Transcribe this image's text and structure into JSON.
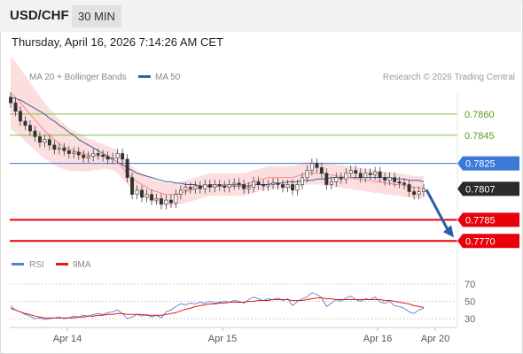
{
  "header": {
    "symbol": "USD/CHF",
    "timeframe": "30 MIN",
    "timestamp": "Thursday, April 16, 2026 7:14:26 AM CET"
  },
  "legend": {
    "ma20": "MA 20 + Bollinger Bands",
    "ma50": "MA 50",
    "copyright": "Research © 2026 Trading Central"
  },
  "rsi_legend": {
    "rsi": "RSI",
    "ma": "9MA"
  },
  "colors": {
    "resistance": "#7fbf3f",
    "pivot": "#3b78d8",
    "support": "#e8000b",
    "current": "#2a2a2a",
    "ma20": "#f08c8c",
    "ma50": "#3a5f9a",
    "bollinger_fill": "#fcdede",
    "rsi": "#5b7fd6",
    "rsi_ma": "#e01919"
  },
  "chart_data": [
    {
      "type": "candlestick",
      "y_range": [
        0.7762,
        0.7875
      ],
      "x_tick_labels": [
        "Apr 14",
        "Apr 15",
        "Apr 16",
        "Apr 20"
      ],
      "levels": [
        {
          "value": 0.786,
          "label": "0.7860",
          "kind": "resistance"
        },
        {
          "value": 0.7845,
          "label": "0.7845",
          "kind": "resistance"
        },
        {
          "value": 0.7825,
          "label": "0.7825",
          "kind": "pivot"
        },
        {
          "value": 0.7807,
          "label": "0.7807",
          "kind": "current"
        },
        {
          "value": 0.7785,
          "label": "0.7785",
          "kind": "support"
        },
        {
          "value": 0.777,
          "label": "0.7770",
          "kind": "support"
        }
      ],
      "close_series": [
        0.7868,
        0.7862,
        0.7855,
        0.7852,
        0.7848,
        0.7844,
        0.784,
        0.7842,
        0.7838,
        0.7835,
        0.7836,
        0.7834,
        0.7832,
        0.7833,
        0.7831,
        0.7829,
        0.783,
        0.7832,
        0.7831,
        0.783,
        0.7828,
        0.7829,
        0.7832,
        0.7828,
        0.7815,
        0.7803,
        0.7806,
        0.7801,
        0.7803,
        0.7799,
        0.78,
        0.7796,
        0.7799,
        0.7797,
        0.7803,
        0.7806,
        0.7808,
        0.7807,
        0.7809,
        0.7807,
        0.781,
        0.7808,
        0.781,
        0.7809,
        0.7808,
        0.781,
        0.7811,
        0.781,
        0.7807,
        0.7808,
        0.7812,
        0.781,
        0.7809,
        0.781,
        0.7811,
        0.781,
        0.7808,
        0.781,
        0.7806,
        0.781,
        0.7815,
        0.782,
        0.7825,
        0.7822,
        0.7818,
        0.781,
        0.7812,
        0.7815,
        0.7814,
        0.7818,
        0.782,
        0.7818,
        0.7815,
        0.7818,
        0.7817,
        0.7819,
        0.7815,
        0.7813,
        0.7815,
        0.7812,
        0.7811,
        0.781,
        0.7805,
        0.7803,
        0.7805,
        0.7807
      ],
      "ma20_series": [
        0.7875,
        0.7872,
        0.7868,
        0.7864,
        0.786,
        0.7856,
        0.7852,
        0.7848,
        0.7845,
        0.7842,
        0.7839,
        0.7837,
        0.7835,
        0.7834,
        0.7833,
        0.7832,
        0.7831,
        0.7831,
        0.783,
        0.783,
        0.7829,
        0.7828,
        0.7826,
        0.7822,
        0.7818,
        0.7815,
        0.7812,
        0.781,
        0.7808,
        0.7806,
        0.7805,
        0.7804,
        0.7803,
        0.7803,
        0.7803,
        0.7804,
        0.7805,
        0.7806,
        0.7807,
        0.7808,
        0.7809,
        0.781,
        0.781,
        0.781,
        0.781,
        0.781,
        0.781,
        0.781,
        0.781,
        0.7811,
        0.7812,
        0.7813,
        0.7814,
        0.7815,
        0.7815,
        0.7815,
        0.7815,
        0.7815,
        0.7815,
        0.7816,
        0.7817,
        0.7818,
        0.7818,
        0.7818,
        0.7818,
        0.7817,
        0.7817,
        0.7816,
        0.7816,
        0.7815,
        0.7815,
        0.7814,
        0.7814,
        0.7813,
        0.7813,
        0.7812,
        0.7812,
        0.7811,
        0.7811,
        0.781,
        0.781,
        0.7809,
        0.7809,
        0.7808,
        0.7808,
        0.7808
      ],
      "ma50_series": [
        0.7872,
        0.7871,
        0.787,
        0.7868,
        0.7866,
        0.7864,
        0.7862,
        0.786,
        0.7857,
        0.7855,
        0.7852,
        0.785,
        0.7847,
        0.7845,
        0.7842,
        0.784,
        0.7838,
        0.7836,
        0.7834,
        0.7832,
        0.783,
        0.7828,
        0.7826,
        0.7824,
        0.7822,
        0.782,
        0.7818,
        0.7817,
        0.7816,
        0.7815,
        0.7814,
        0.7813,
        0.7812,
        0.7812,
        0.7811,
        0.7811,
        0.781,
        0.781,
        0.781,
        0.7809,
        0.7809,
        0.7809,
        0.7809,
        0.7809,
        0.7809,
        0.7809,
        0.7809,
        0.7809,
        0.7809,
        0.7809,
        0.781,
        0.781,
        0.781,
        0.781,
        0.7811,
        0.7811,
        0.7811,
        0.7812,
        0.7812,
        0.7812,
        0.7813,
        0.7813,
        0.7813,
        0.7814,
        0.7814,
        0.7814,
        0.7815,
        0.7815,
        0.7815,
        0.7815,
        0.7815,
        0.7815,
        0.7815,
        0.7815,
        0.7815,
        0.7815,
        0.7815,
        0.7815,
        0.7815,
        0.7814,
        0.7814,
        0.7814,
        0.7813,
        0.7813,
        0.7813,
        0.7812
      ],
      "projection": {
        "from": 0.7807,
        "to": 0.7775
      }
    },
    {
      "type": "line",
      "name": "RSI",
      "y_range": [
        20,
        80
      ],
      "y_ticks": [
        "70",
        "50",
        "30"
      ],
      "reference_lines": [
        70,
        50,
        30
      ],
      "rsi_series": [
        45,
        40,
        38,
        35,
        33,
        30,
        31,
        29,
        30,
        31,
        32,
        30,
        31,
        33,
        32,
        34,
        33,
        35,
        36,
        35,
        37,
        38,
        40,
        36,
        30,
        32,
        35,
        33,
        35,
        32,
        34,
        31,
        38,
        40,
        44,
        47,
        46,
        48,
        47,
        49,
        48,
        50,
        48,
        49,
        50,
        49,
        51,
        50,
        48,
        52,
        55,
        53,
        51,
        53,
        52,
        54,
        51,
        53,
        45,
        50,
        53,
        55,
        60,
        58,
        54,
        44,
        48,
        52,
        50,
        54,
        56,
        52,
        50,
        53,
        52,
        55,
        49,
        48,
        50,
        45,
        44,
        42,
        38,
        36,
        40,
        42
      ],
      "ma9_series": [
        42,
        40,
        38,
        36,
        35,
        33,
        32,
        31,
        31,
        31,
        31,
        31,
        31,
        31,
        32,
        32,
        33,
        33,
        34,
        34,
        35,
        35,
        36,
        36,
        35,
        35,
        35,
        35,
        34,
        34,
        34,
        34,
        35,
        36,
        37,
        39,
        41,
        42,
        44,
        45,
        46,
        47,
        47,
        48,
        48,
        49,
        49,
        49,
        49,
        50,
        50,
        51,
        51,
        51,
        52,
        52,
        52,
        52,
        51,
        51,
        51,
        52,
        53,
        54,
        54,
        53,
        53,
        52,
        52,
        52,
        52,
        52,
        52,
        52,
        52,
        52,
        52,
        51,
        51,
        50,
        49,
        48,
        47,
        45,
        44,
        43
      ]
    }
  ]
}
